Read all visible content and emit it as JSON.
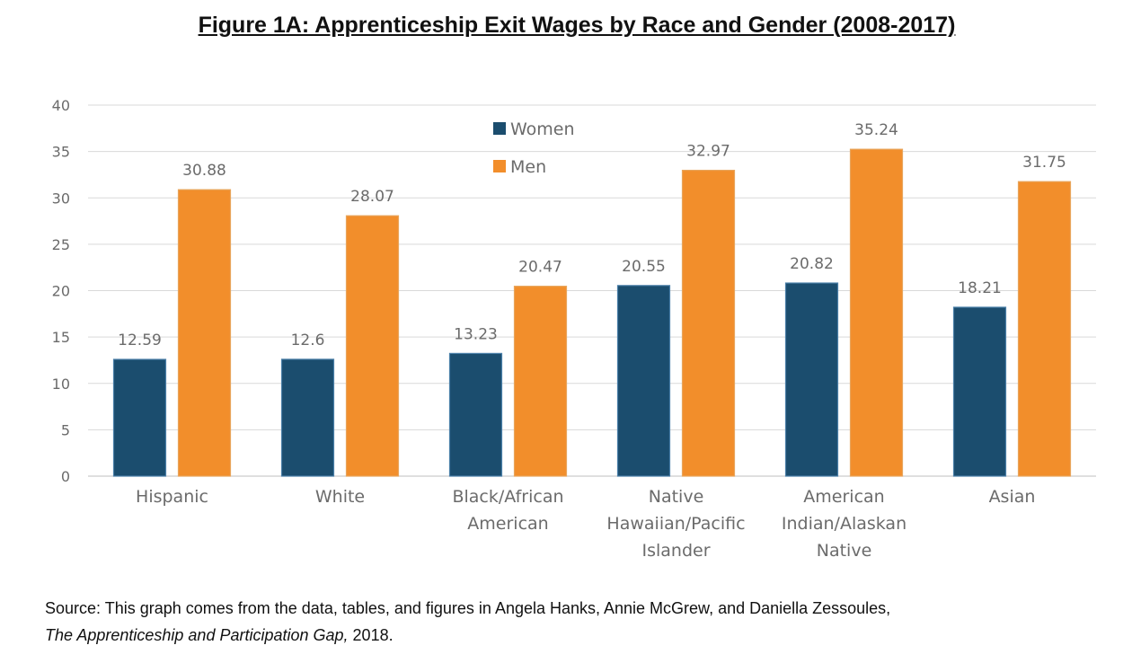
{
  "chart_data": {
    "type": "bar",
    "title": "Figure 1A: Apprenticeship Exit Wages by Race and Gender (2008-2017)",
    "categories": [
      [
        "Hispanic"
      ],
      [
        "White"
      ],
      [
        "Black/African",
        "American"
      ],
      [
        "Native",
        "Hawaiian/Pacific",
        "Islander"
      ],
      [
        "American",
        "Indian/Alaskan",
        "Native"
      ],
      [
        "Asian"
      ]
    ],
    "series": [
      {
        "name": "Women",
        "color": "#1b4d6e",
        "values": [
          12.59,
          12.6,
          13.23,
          20.55,
          20.82,
          18.21
        ]
      },
      {
        "name": "Men",
        "color": "#f28e2b",
        "values": [
          30.88,
          28.07,
          20.47,
          32.97,
          35.24,
          31.75
        ]
      }
    ],
    "data_labels": [
      [
        "12.59",
        "12.6",
        "13.23",
        "20.55",
        "20.82",
        "18.21"
      ],
      [
        "30.88",
        "28.07",
        "20.47",
        "32.97",
        "35.24",
        "31.75"
      ]
    ],
    "yticks": [
      "0",
      "5",
      "10",
      "15",
      "20",
      "25",
      "30",
      "35",
      "40"
    ],
    "ylim": [
      0,
      40
    ],
    "grid": true,
    "legend_position": "top-center"
  },
  "source": {
    "line1": "Source: This graph comes from the data, tables, and figures in Angela Hanks, Annie McGrew, and Daniella Zessoules,",
    "line2_italic": "The Apprenticeship and Participation Gap,",
    "line2_rest": " 2018."
  }
}
